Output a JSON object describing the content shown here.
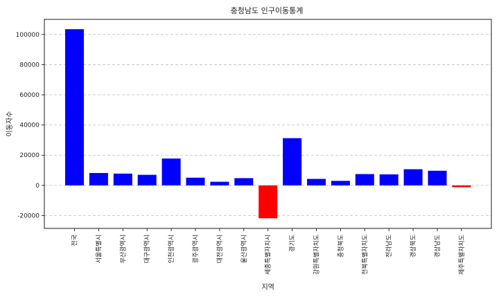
{
  "chart_data": {
    "type": "bar",
    "title": "충청남도 인구이동통계",
    "xlabel": "지역",
    "ylabel": "이동자수",
    "categories": [
      "전국",
      "서울특별시",
      "부산광역시",
      "대구광역시",
      "인천광역시",
      "광주광역시",
      "대전광역시",
      "울산광역시",
      "세종특별자치시",
      "경기도",
      "강원특별자치도",
      "충청북도",
      "전북특별자치도",
      "전라남도",
      "경상북도",
      "경상남도",
      "제주특별자치도"
    ],
    "values": [
      103500,
      8200,
      7800,
      7000,
      17800,
      5100,
      2400,
      4800,
      -21800,
      31300,
      4300,
      3000,
      7500,
      7300,
      10700,
      9700,
      -1200
    ],
    "ylim": [
      -28500,
      110000
    ],
    "yticks": [
      -20000,
      0,
      20000,
      40000,
      60000,
      80000,
      100000
    ],
    "ytick_labels": [
      "-20000",
      "0",
      "20000",
      "40000",
      "60000",
      "80000",
      "100000"
    ],
    "grid": "y",
    "colors": {
      "positive": "#0000ff",
      "negative": "#ff0000"
    }
  }
}
